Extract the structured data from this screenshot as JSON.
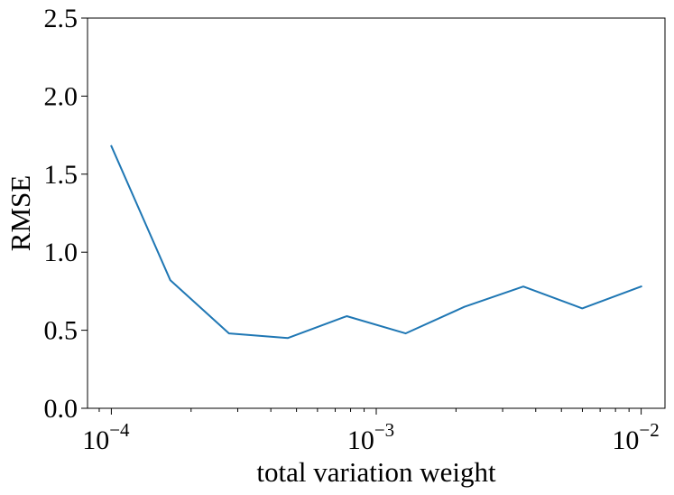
{
  "chart_data": {
    "type": "line",
    "title": "",
    "xlabel": "total variation weight",
    "ylabel": "RMSE",
    "xscale": "log",
    "xlim": [
      8.13e-05,
      0.0123
    ],
    "ylim": [
      0,
      2.5
    ],
    "yticks": [
      "0.0",
      "0.5",
      "1.0",
      "1.5",
      "2.0",
      "2.5"
    ],
    "xticks": [
      {
        "base": "10",
        "exp": "−4",
        "value": 0.0001
      },
      {
        "base": "10",
        "exp": "−3",
        "value": 0.001
      },
      {
        "base": "10",
        "exp": "−2",
        "value": 0.01
      }
    ],
    "grid": false,
    "series": [
      {
        "color": "#1f77b4",
        "x": [
          0.0001,
          0.000167,
          0.000278,
          0.000464,
          0.000774,
          0.00129,
          0.00215,
          0.00359,
          0.00599,
          0.01
        ],
        "y": [
          1.68,
          0.82,
          0.48,
          0.45,
          0.59,
          0.48,
          0.65,
          0.78,
          0.64,
          0.78
        ]
      }
    ]
  }
}
